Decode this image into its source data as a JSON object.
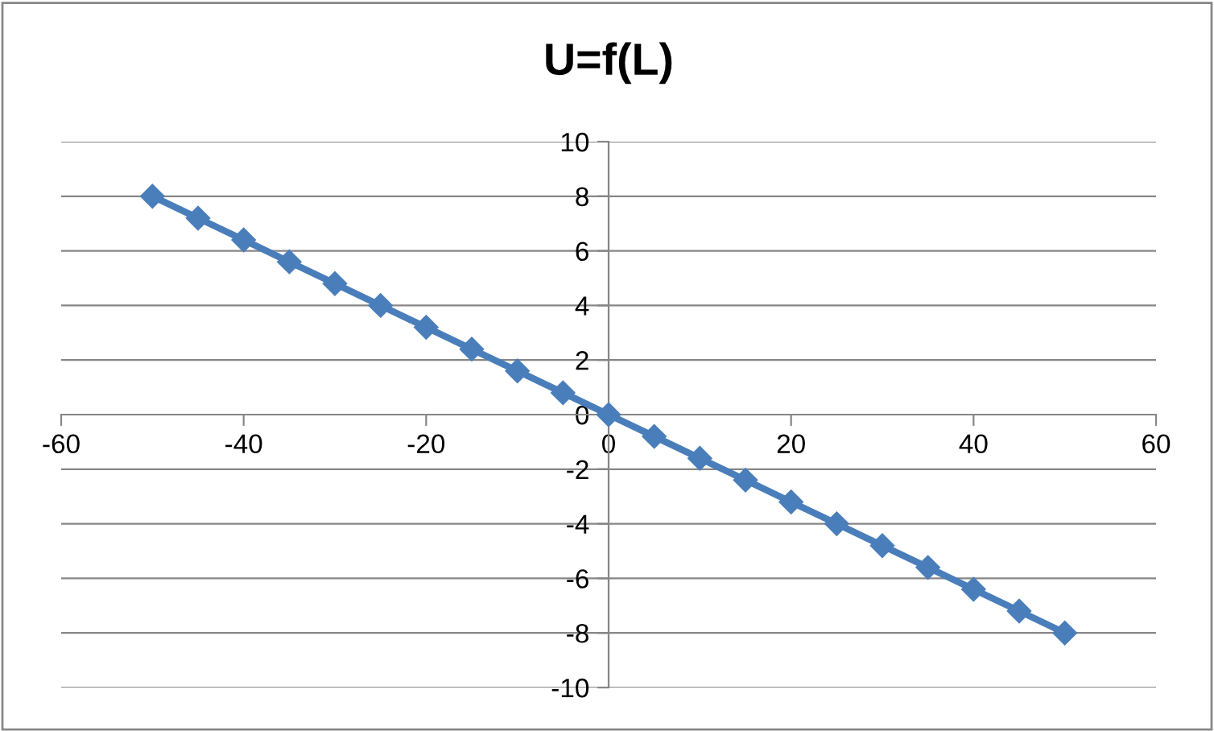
{
  "chart_data": {
    "type": "line",
    "title": "U=f(L)",
    "x": [
      -50,
      -45,
      -40,
      -35,
      -30,
      -25,
      -20,
      -15,
      -10,
      -5,
      0,
      5,
      10,
      15,
      20,
      25,
      30,
      35,
      40,
      45,
      50
    ],
    "series": [
      {
        "color": "#4a7ebb",
        "values": [
          8,
          7.2,
          6.4,
          5.6,
          4.8,
          4,
          3.2,
          2.4,
          1.6,
          0.8,
          0,
          -0.8,
          -1.6,
          -2.4,
          -3.2,
          -4,
          -4.8,
          -5.6,
          -6.4,
          -7.2,
          -8
        ]
      }
    ],
    "xlim": [
      -60,
      60
    ],
    "xticks": [
      -60,
      -40,
      -20,
      0,
      20,
      40,
      60
    ],
    "ylim": [
      -10,
      10
    ],
    "yticks": [
      -10,
      -8,
      -6,
      -4,
      -2,
      0,
      2,
      4,
      6,
      8,
      10
    ],
    "grid": "y",
    "marker": "diamond",
    "line_style": "solid",
    "legend": false
  }
}
